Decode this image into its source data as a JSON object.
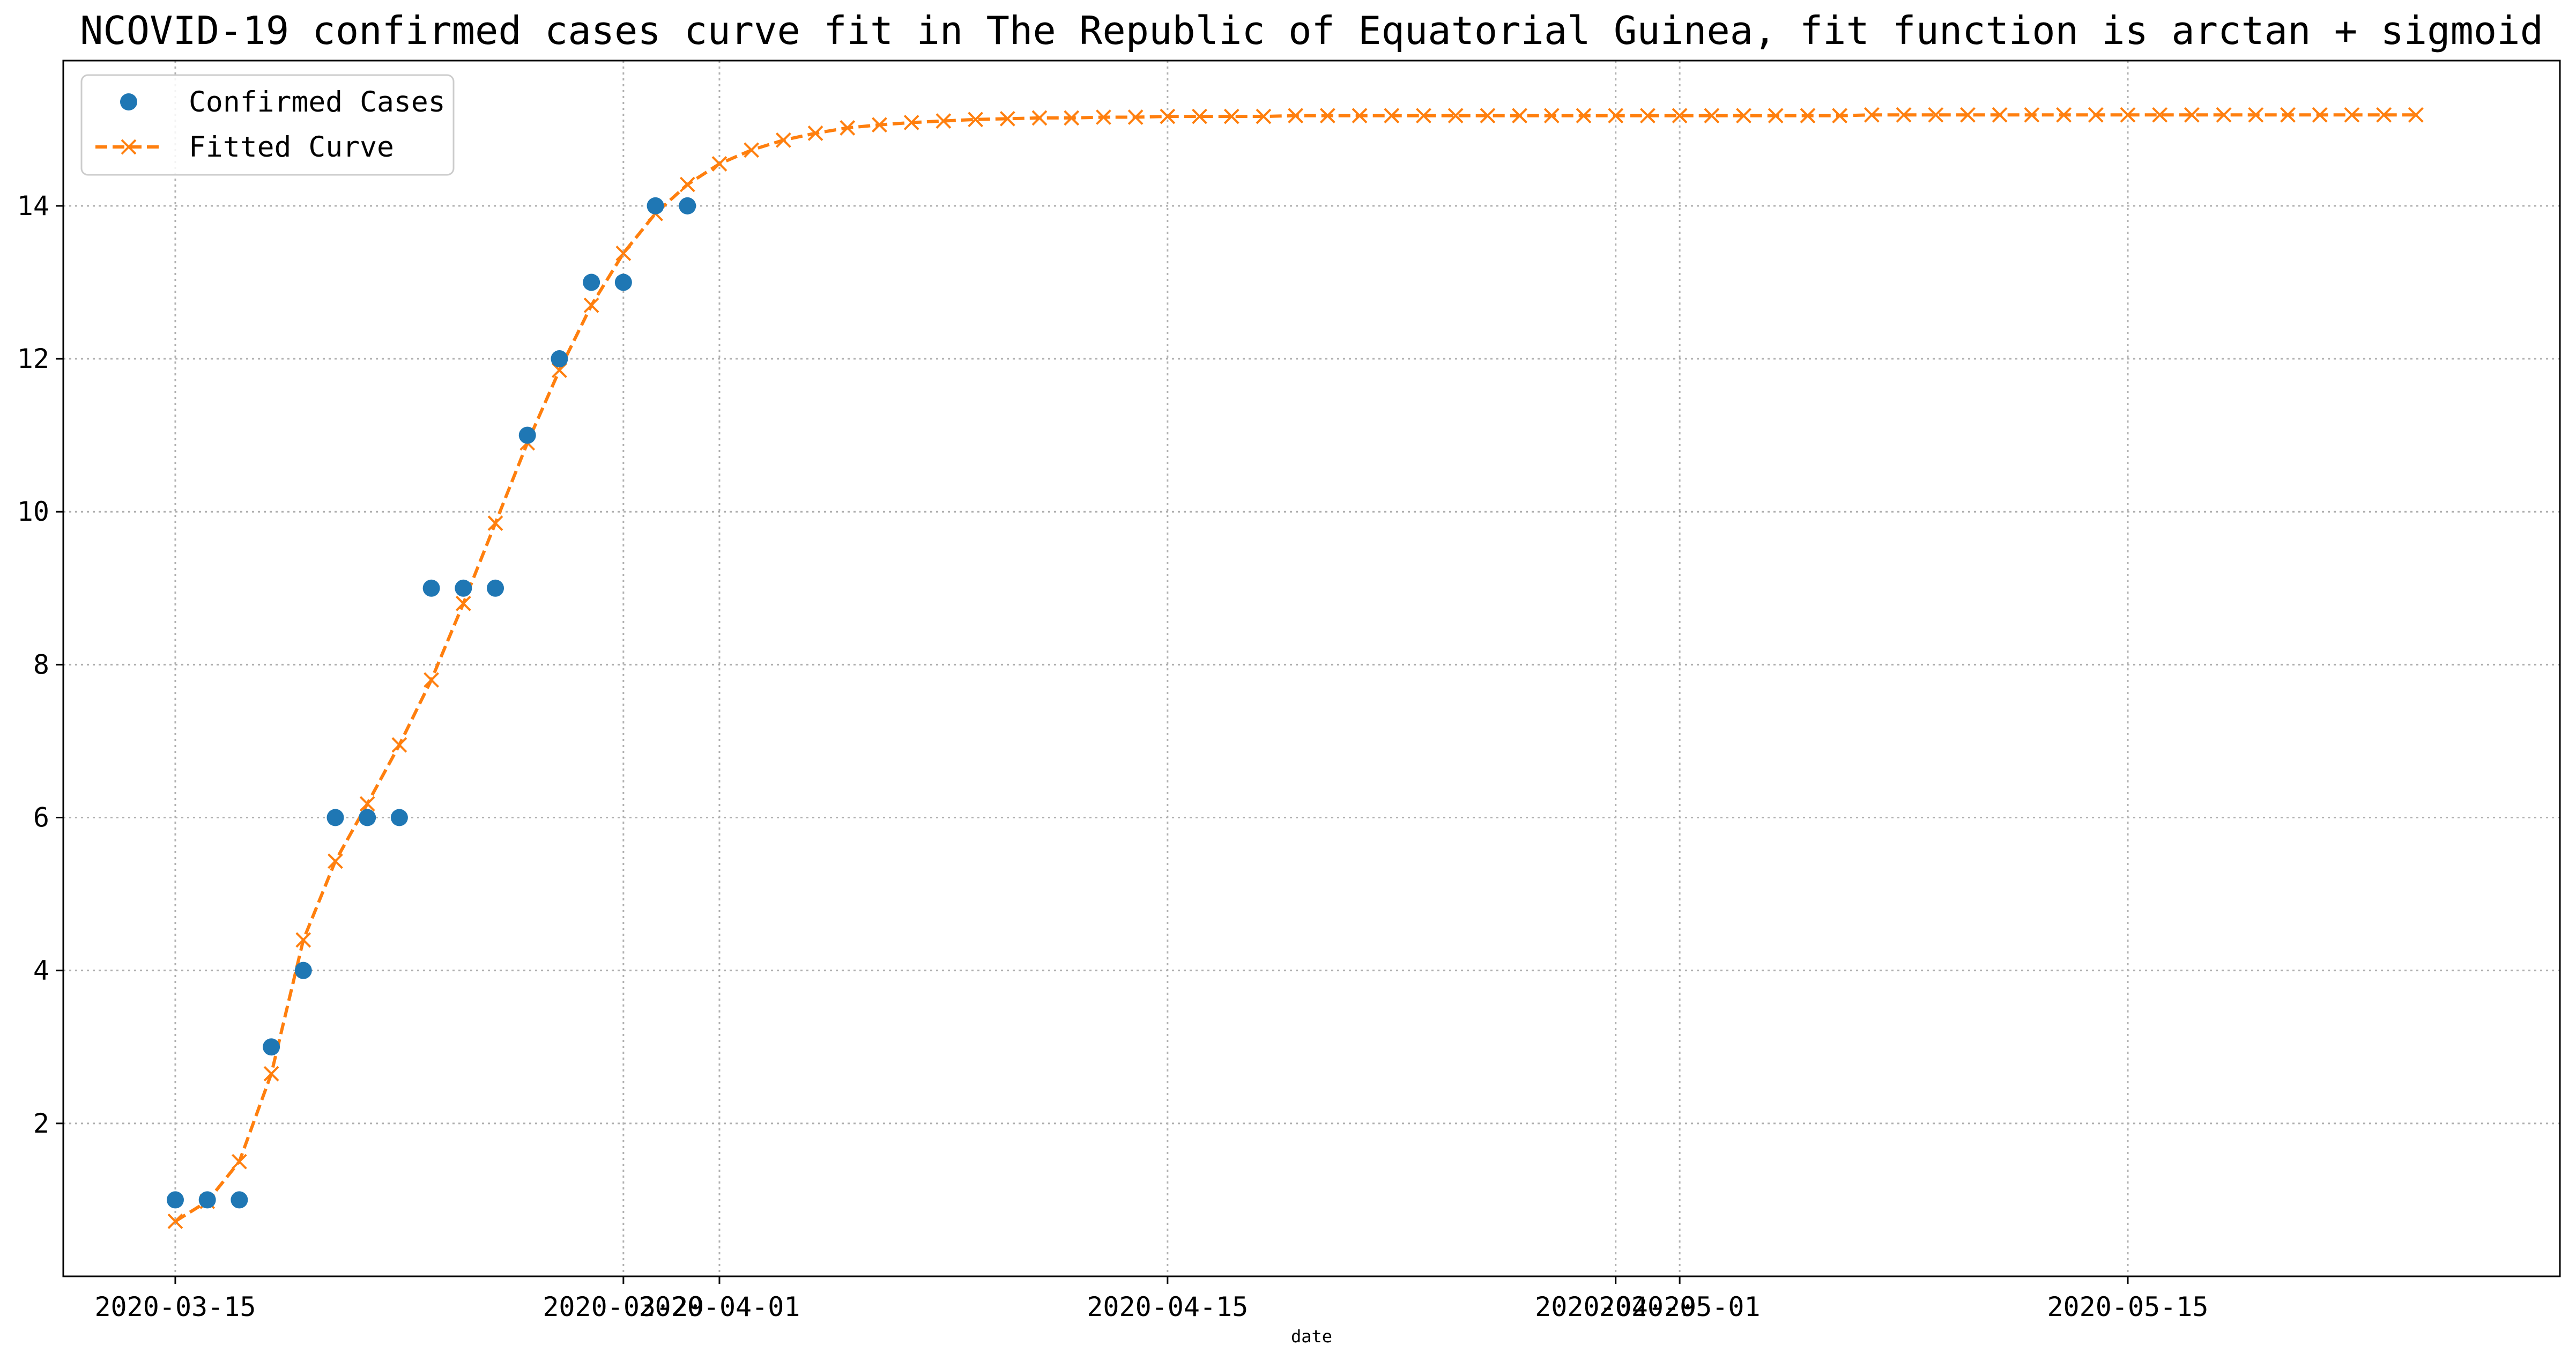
{
  "chart_data": {
    "type": "line",
    "title": "NCOVID-19 confirmed cases curve fit in The Republic of Equatorial Guinea, fit function is arctan + sigmoid",
    "xlabel": "date",
    "ylabel": "",
    "x_axis_type": "date",
    "xlim": [
      "2020-03-11 12:00",
      "2020-05-28 12:00"
    ],
    "ylim": [
      0.0,
      15.9
    ],
    "x_ticks": [
      {
        "date": "2020-03-15",
        "label": "2020-03-15"
      },
      {
        "date": "2020-03-29",
        "label": "2020-03-29"
      },
      {
        "date": "2020-04-01",
        "label": "2020-04-01"
      },
      {
        "date": "2020-04-15",
        "label": "2020-04-15"
      },
      {
        "date": "2020-04-29",
        "label": "2020-04-29"
      },
      {
        "date": "2020-05-01",
        "label": "2020-05-01"
      },
      {
        "date": "2020-05-15",
        "label": "2020-05-15"
      }
    ],
    "y_ticks": [
      2,
      4,
      6,
      8,
      10,
      12,
      14
    ],
    "grid": true,
    "legend_position": "top-left",
    "series": [
      {
        "name": "Confirmed Cases",
        "style": "markers",
        "marker": "circle",
        "color": "#1f77b4",
        "start_date": "2020-03-15",
        "values": [
          1,
          1,
          1,
          3,
          4,
          6,
          6,
          6,
          9,
          9,
          9,
          11,
          12,
          13,
          13,
          14,
          14
        ]
      },
      {
        "name": "Fitted Curve",
        "style": "dashed-line-x-markers",
        "marker": "x",
        "color": "#ff7f0e",
        "start_date": "2020-03-15",
        "values": [
          0.72,
          0.98,
          1.5,
          2.65,
          4.4,
          5.43,
          6.18,
          6.95,
          7.8,
          8.8,
          9.85,
          10.9,
          11.85,
          12.7,
          13.38,
          13.9,
          14.28,
          14.55,
          14.73,
          14.86,
          14.95,
          15.02,
          15.06,
          15.09,
          15.11,
          15.13,
          15.14,
          15.15,
          15.15,
          15.16,
          15.16,
          15.17,
          15.17,
          15.17,
          15.17,
          15.18,
          15.18,
          15.18,
          15.18,
          15.18,
          15.18,
          15.18,
          15.18,
          15.18,
          15.18,
          15.18,
          15.18,
          15.18,
          15.18,
          15.18,
          15.18,
          15.18,
          15.18,
          15.19,
          15.19,
          15.19,
          15.19,
          15.19,
          15.19,
          15.19,
          15.19,
          15.19,
          15.19,
          15.19,
          15.19,
          15.19,
          15.19,
          15.19,
          15.19,
          15.19,
          15.19
        ]
      }
    ]
  }
}
